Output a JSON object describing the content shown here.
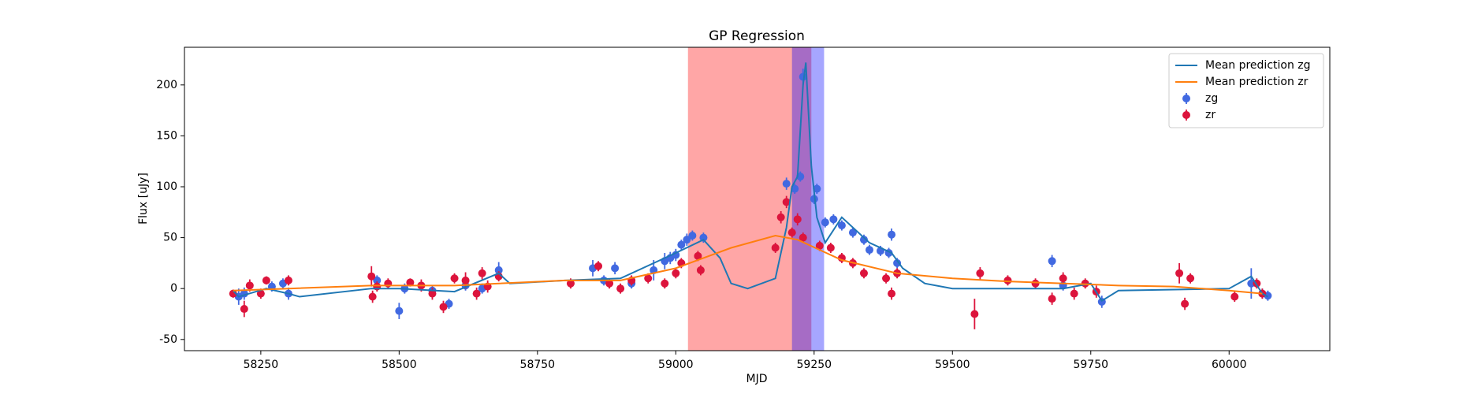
{
  "chart_data": {
    "type": "line",
    "title": "GP Regression",
    "x_label": "MJD",
    "y_label": "Flux [uJy]",
    "xlim": [
      58112,
      60182
    ],
    "ylim": [
      -61,
      237
    ],
    "xticks": [
      58250,
      58500,
      58750,
      59000,
      59250,
      59500,
      59750,
      60000
    ],
    "yticks": [
      -50,
      0,
      50,
      100,
      150,
      200
    ],
    "legend": "upper right",
    "spans": [
      {
        "x0": 59022,
        "x1": 59245,
        "color": "#ff0000",
        "alpha": 0.35
      },
      {
        "x0": 59210,
        "x1": 59268,
        "color": "#0000ff",
        "alpha": 0.35
      }
    ],
    "series": [
      {
        "name": "Mean prediction zg",
        "type": "line",
        "color": "#1f77b4",
        "x": [
          58200,
          58210,
          58260,
          58300,
          58320,
          58450,
          58500,
          58600,
          58680,
          58700,
          58800,
          58900,
          59000,
          59050,
          59080,
          59100,
          59130,
          59180,
          59200,
          59210,
          59220,
          59230,
          59235,
          59245,
          59255,
          59270,
          59300,
          59350,
          59390,
          59410,
          59450,
          59500,
          59600,
          59700,
          59750,
          59770,
          59800,
          60000,
          60040,
          60060,
          60070
        ],
        "values": [
          -2,
          -8,
          0,
          -5,
          -8,
          0,
          0,
          -3,
          15,
          5,
          8,
          10,
          35,
          48,
          30,
          5,
          0,
          10,
          60,
          100,
          110,
          200,
          222,
          120,
          70,
          45,
          70,
          45,
          35,
          20,
          5,
          0,
          0,
          0,
          5,
          -12,
          -2,
          0,
          12,
          -5,
          -8
        ]
      },
      {
        "name": "Mean prediction zr",
        "type": "line",
        "color": "#ff7f0e",
        "x": [
          58200,
          58300,
          58450,
          58600,
          58800,
          58900,
          59000,
          59100,
          59180,
          59220,
          59260,
          59300,
          59400,
          59500,
          59600,
          59800,
          59900,
          60000,
          60060
        ],
        "values": [
          -2,
          0,
          3,
          3,
          8,
          8,
          20,
          40,
          52,
          48,
          38,
          28,
          15,
          10,
          7,
          3,
          2,
          -2,
          -5
        ]
      },
      {
        "name": "zg",
        "type": "errorbar",
        "color": "#4169e1",
        "x": [
          58210,
          58220,
          58270,
          58290,
          58300,
          58460,
          58500,
          58510,
          58560,
          58590,
          58620,
          58650,
          58680,
          58850,
          58870,
          58890,
          58920,
          58960,
          58980,
          58990,
          59000,
          59010,
          59020,
          59030,
          59050,
          59200,
          59215,
          59225,
          59230,
          59250,
          59255,
          59270,
          59285,
          59300,
          59320,
          59340,
          59350,
          59370,
          59385,
          59390,
          59400,
          59680,
          59700,
          59770,
          60040,
          60060,
          60070
        ],
        "values": [
          -8,
          -5,
          2,
          5,
          -5,
          8,
          -22,
          0,
          -2,
          -15,
          3,
          0,
          18,
          20,
          8,
          20,
          5,
          18,
          27,
          30,
          33,
          43,
          48,
          52,
          50,
          103,
          98,
          110,
          208,
          88,
          98,
          65,
          68,
          62,
          55,
          48,
          38,
          37,
          35,
          53,
          25,
          27,
          3,
          -13,
          5,
          -5,
          -7
        ],
        "errors": [
          8,
          6,
          5,
          5,
          6,
          5,
          8,
          5,
          5,
          5,
          5,
          5,
          8,
          8,
          5,
          6,
          5,
          10,
          8,
          6,
          6,
          5,
          6,
          5,
          5,
          6,
          5,
          5,
          8,
          5,
          5,
          5,
          5,
          5,
          5,
          5,
          5,
          5,
          5,
          6,
          5,
          6,
          5,
          6,
          15,
          5,
          5
        ]
      },
      {
        "name": "zr",
        "type": "errorbar",
        "color": "#dc143c",
        "x": [
          58200,
          58220,
          58230,
          58250,
          58260,
          58300,
          58450,
          58452,
          58460,
          58480,
          58520,
          58540,
          58560,
          58580,
          58600,
          58620,
          58640,
          58650,
          58660,
          58680,
          58810,
          58860,
          58880,
          58900,
          58920,
          58950,
          58980,
          59000,
          59010,
          59040,
          59045,
          59180,
          59190,
          59200,
          59210,
          59220,
          59230,
          59260,
          59280,
          59300,
          59320,
          59340,
          59380,
          59390,
          59400,
          59540,
          59550,
          59600,
          59650,
          59680,
          59700,
          59720,
          59740,
          59760,
          59910,
          59920,
          59930,
          60010,
          60050,
          60060
        ],
        "values": [
          -5,
          -20,
          3,
          -5,
          8,
          8,
          12,
          -8,
          2,
          5,
          6,
          3,
          -5,
          -18,
          10,
          8,
          -5,
          15,
          2,
          12,
          5,
          22,
          5,
          0,
          8,
          10,
          5,
          15,
          25,
          32,
          18,
          40,
          70,
          85,
          55,
          68,
          50,
          42,
          40,
          30,
          25,
          15,
          10,
          -5,
          15,
          -25,
          15,
          8,
          5,
          -10,
          10,
          -5,
          5,
          -3,
          15,
          -15,
          10,
          -8,
          5,
          -5
        ],
        "errors": [
          4,
          8,
          6,
          5,
          4,
          5,
          10,
          6,
          5,
          5,
          4,
          6,
          6,
          6,
          5,
          8,
          6,
          6,
          6,
          5,
          5,
          5,
          5,
          5,
          5,
          5,
          5,
          5,
          5,
          5,
          5,
          5,
          6,
          6,
          5,
          6,
          5,
          5,
          5,
          5,
          5,
          5,
          5,
          6,
          5,
          15,
          6,
          5,
          5,
          6,
          6,
          6,
          5,
          6,
          10,
          6,
          5,
          5,
          5,
          5
        ]
      }
    ]
  }
}
